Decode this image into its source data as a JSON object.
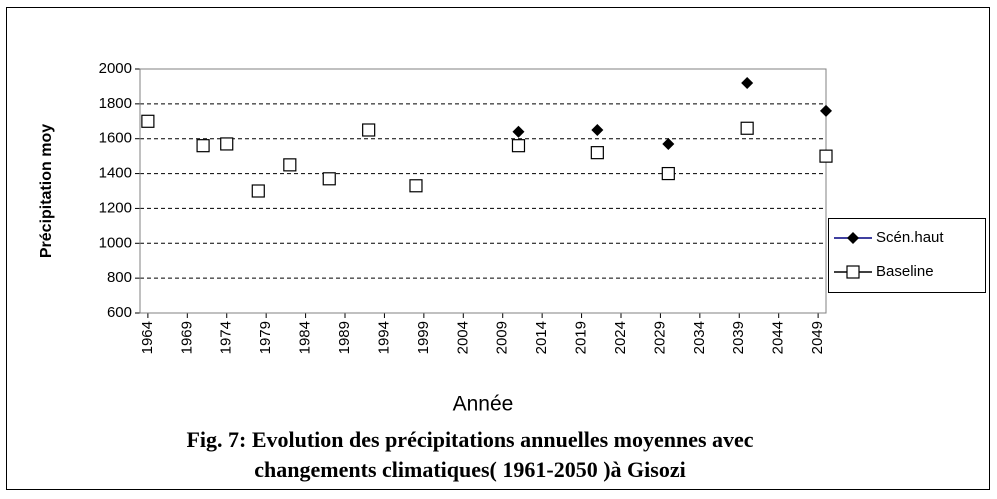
{
  "chart_data": {
    "type": "scatter",
    "title": [
      "Fig. 7: Evolution des précipitations annuelles moyennes avec",
      "changements climatiques( 1961-2050 )à Gisozi"
    ],
    "x_label": "Année",
    "y_label": "Précipitation moy",
    "xlim": [
      1963,
      2050
    ],
    "xticks": [
      1964,
      1969,
      1974,
      1979,
      1984,
      1989,
      1994,
      1999,
      2004,
      2009,
      2014,
      2019,
      2024,
      2029,
      2034,
      2039,
      2044,
      2049
    ],
    "ylim": [
      600,
      2000
    ],
    "yticks": [
      600,
      800,
      1000,
      1200,
      1400,
      1600,
      1800,
      2000
    ],
    "grid": true,
    "legend": "right",
    "series": [
      {
        "name": "Scén.haut",
        "color": "#000080",
        "marker": "diamond",
        "x": [
          2011,
          2021,
          2030,
          2040,
          2050
        ],
        "values": [
          1640,
          1650,
          1570,
          1920,
          1760
        ]
      },
      {
        "name": "Baseline",
        "color": "#000000",
        "marker": "square",
        "x": [
          1964,
          1971,
          1974,
          1978,
          1982,
          1987,
          1992,
          1998,
          2011,
          2021,
          2030,
          2040,
          2050
        ],
        "values": [
          1700,
          1560,
          1570,
          1300,
          1450,
          1370,
          1650,
          1330,
          1560,
          1520,
          1400,
          1660,
          1500
        ]
      }
    ]
  }
}
